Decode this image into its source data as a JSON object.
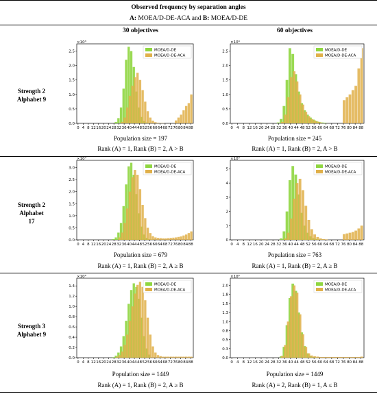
{
  "figure": {
    "title": "Observed frequency by separation angles",
    "subtitle_parts": [
      "A:",
      " MOEA/D-DE-ACA and ",
      "B:",
      " MOEA/D-DE"
    ],
    "col_headers": [
      "30 objectives",
      "60 objectives"
    ],
    "row_labels": [
      [
        "Strength 2",
        "Alphabet 9"
      ],
      [
        "Strength 2",
        "Alphabet",
        "17"
      ],
      [
        "Strength 3",
        "Alphabet 9"
      ]
    ]
  },
  "colors": {
    "moead_de": "#8fd640",
    "moead_de_aca": "#e0b04a",
    "frame": "#000000"
  },
  "chart_data": [
    {
      "type": "bar",
      "row": 0,
      "col": 0,
      "scale_label": "×10³",
      "ylim": [
        0,
        2.75
      ],
      "yticks": [
        0.0,
        0.5,
        1.0,
        1.5,
        2.0,
        2.5
      ],
      "legend": "top-right",
      "xticks": [
        0,
        4,
        8,
        12,
        16,
        20,
        24,
        28,
        32,
        36,
        40,
        44,
        48,
        52,
        56,
        60,
        64,
        68,
        72,
        76,
        80,
        84,
        88
      ],
      "series": [
        {
          "name": "MOEA/D-DE",
          "x": [
            30,
            32,
            34,
            36,
            38,
            40,
            42,
            44,
            46,
            48,
            50,
            52,
            54,
            56
          ],
          "values": [
            0.05,
            0.18,
            0.55,
            1.2,
            2.2,
            2.65,
            2.5,
            1.95,
            1.1,
            0.55,
            0.22,
            0.08,
            0.03,
            0.01
          ]
        },
        {
          "name": "MOEA/D-DE-ACA",
          "x": [
            34,
            36,
            38,
            40,
            42,
            44,
            46,
            48,
            50,
            52,
            54,
            56,
            58,
            60,
            62,
            64,
            66,
            76,
            78,
            80,
            82,
            84,
            86,
            88
          ],
          "values": [
            0.05,
            0.2,
            0.55,
            0.95,
            1.3,
            1.6,
            1.75,
            1.5,
            1.15,
            0.75,
            0.42,
            0.2,
            0.09,
            0.04,
            0.02,
            0.01,
            0.01,
            0.1,
            0.2,
            0.3,
            0.45,
            0.6,
            0.7,
            1.0
          ]
        }
      ],
      "caption_pop": "Population size = 197",
      "caption_rank": "Rank (A) = 1, Rank (B) = 2, A > B"
    },
    {
      "type": "bar",
      "row": 0,
      "col": 1,
      "scale_label": "×10³",
      "ylim": [
        0,
        2.75
      ],
      "yticks": [
        0.0,
        0.5,
        1.0,
        1.5,
        2.0,
        2.5
      ],
      "legend": "top-right",
      "xticks": [
        0,
        4,
        8,
        12,
        16,
        20,
        24,
        28,
        32,
        36,
        40,
        44,
        48,
        52,
        56,
        60,
        64,
        68,
        72,
        76,
        80,
        84,
        88
      ],
      "series": [
        {
          "name": "MOEA/D-DE",
          "x": [
            32,
            34,
            36,
            38,
            40,
            42,
            44,
            46,
            48,
            50,
            52,
            54,
            56,
            58,
            60,
            62,
            64
          ],
          "values": [
            0.03,
            0.15,
            0.6,
            1.5,
            2.6,
            2.4,
            1.7,
            1.1,
            0.7,
            0.45,
            0.3,
            0.2,
            0.13,
            0.08,
            0.05,
            0.03,
            0.02
          ]
        },
        {
          "name": "MOEA/D-DE-ACA",
          "x": [
            34,
            36,
            38,
            40,
            42,
            44,
            46,
            48,
            50,
            52,
            54,
            56,
            58,
            60,
            76,
            78,
            80,
            82,
            84,
            86,
            88
          ],
          "values": [
            0.05,
            0.3,
            0.9,
            1.6,
            1.8,
            1.45,
            1.0,
            0.65,
            0.4,
            0.25,
            0.15,
            0.1,
            0.06,
            0.03,
            0.8,
            0.9,
            1.0,
            1.15,
            1.3,
            1.9,
            2.6
          ]
        }
      ],
      "caption_pop": "Population size = 245",
      "caption_rank": "Rank (A) = 1, Rank (B) = 2, A > B"
    },
    {
      "type": "bar",
      "row": 1,
      "col": 0,
      "scale_label": "×10⁴",
      "ylim": [
        0,
        3.3
      ],
      "yticks": [
        0.0,
        0.5,
        1.0,
        1.5,
        2.0,
        2.5,
        3.0
      ],
      "legend": "top-right",
      "xticks": [
        0,
        4,
        8,
        12,
        16,
        20,
        24,
        28,
        32,
        36,
        40,
        44,
        48,
        52,
        56,
        60,
        64,
        68,
        72,
        76,
        80,
        84,
        88
      ],
      "series": [
        {
          "name": "MOEA/D-DE",
          "x": [
            28,
            30,
            32,
            34,
            36,
            38,
            40,
            42,
            44,
            46,
            48,
            50,
            52,
            54,
            56,
            58
          ],
          "values": [
            0.03,
            0.1,
            0.3,
            0.7,
            1.4,
            2.3,
            3.05,
            3.2,
            2.7,
            1.9,
            1.1,
            0.55,
            0.22,
            0.08,
            0.03,
            0.01
          ]
        },
        {
          "name": "MOEA/D-DE-ACA",
          "x": [
            32,
            34,
            36,
            38,
            40,
            42,
            44,
            46,
            48,
            50,
            52,
            54,
            56,
            58,
            60,
            62,
            64,
            66,
            68,
            70,
            72,
            74,
            76,
            78,
            80,
            82,
            84,
            86,
            88
          ],
          "values": [
            0.1,
            0.3,
            0.7,
            1.3,
            2.0,
            2.6,
            2.9,
            2.7,
            2.1,
            1.45,
            0.9,
            0.5,
            0.28,
            0.15,
            0.1,
            0.08,
            0.07,
            0.06,
            0.06,
            0.07,
            0.08,
            0.09,
            0.1,
            0.12,
            0.14,
            0.18,
            0.22,
            0.28,
            0.35
          ]
        }
      ],
      "caption_pop": "Population size = 679",
      "caption_rank": "Rank (A) = 1, Rank (B) = 2, A ≥ B"
    },
    {
      "type": "bar",
      "row": 1,
      "col": 1,
      "scale_label": "×10⁴",
      "ylim": [
        0,
        5.6
      ],
      "yticks": [
        0,
        1,
        2,
        3,
        4,
        5
      ],
      "legend": "top-right",
      "xticks": [
        0,
        4,
        8,
        12,
        16,
        20,
        24,
        28,
        32,
        36,
        40,
        44,
        48,
        52,
        56,
        60,
        64,
        68,
        72,
        76,
        80,
        84,
        88
      ],
      "series": [
        {
          "name": "MOEA/D-DE",
          "x": [
            34,
            36,
            38,
            40,
            42,
            44,
            46,
            48,
            50,
            52,
            54,
            56,
            58,
            60,
            62
          ],
          "values": [
            0.1,
            0.6,
            2.0,
            4.2,
            5.2,
            4.6,
            3.2,
            1.9,
            1.0,
            0.5,
            0.25,
            0.12,
            0.06,
            0.03,
            0.01
          ]
        },
        {
          "name": "MOEA/D-DE-ACA",
          "x": [
            36,
            38,
            40,
            42,
            44,
            46,
            48,
            50,
            52,
            54,
            56,
            58,
            60,
            62,
            64,
            76,
            78,
            80,
            82,
            84,
            86,
            88
          ],
          "values": [
            0.1,
            0.5,
            1.5,
            2.9,
            4.0,
            4.3,
            3.5,
            2.4,
            1.4,
            0.75,
            0.38,
            0.2,
            0.1,
            0.05,
            0.03,
            0.4,
            0.45,
            0.5,
            0.55,
            0.65,
            0.8,
            1.0
          ]
        }
      ],
      "caption_pop": "Population size = 763",
      "caption_rank": "Rank (A) = 1, Rank (B) = 2, A ≥ B"
    },
    {
      "type": "bar",
      "row": 2,
      "col": 0,
      "scale_label": "×10⁵",
      "ylim": [
        0,
        1.55
      ],
      "yticks": [
        0.0,
        0.2,
        0.4,
        0.6,
        0.8,
        1.0,
        1.2,
        1.4
      ],
      "legend": "top-right",
      "xticks": [
        0,
        4,
        8,
        12,
        16,
        20,
        24,
        28,
        32,
        36,
        40,
        44,
        48,
        52,
        56,
        60,
        64,
        68,
        72,
        76,
        80,
        84,
        88
      ],
      "series": [
        {
          "name": "MOEA/D-DE",
          "x": [
            28,
            30,
            32,
            34,
            36,
            38,
            40,
            42,
            44,
            46,
            48,
            50,
            52,
            54,
            56
          ],
          "values": [
            0.01,
            0.04,
            0.1,
            0.22,
            0.42,
            0.72,
            1.05,
            1.32,
            1.45,
            1.38,
            1.15,
            0.78,
            0.42,
            0.18,
            0.06
          ]
        },
        {
          "name": "MOEA/D-DE-ACA",
          "x": [
            30,
            32,
            34,
            36,
            38,
            40,
            42,
            44,
            46,
            48,
            50,
            52,
            54,
            56,
            58,
            60,
            62,
            64,
            66,
            68,
            70,
            72,
            74,
            76,
            78,
            80,
            82,
            84,
            86,
            88
          ],
          "values": [
            0.02,
            0.05,
            0.12,
            0.25,
            0.45,
            0.72,
            1.0,
            1.25,
            1.42,
            1.48,
            1.38,
            1.12,
            0.78,
            0.45,
            0.22,
            0.1,
            0.05,
            0.03,
            0.02,
            0.02,
            0.02,
            0.02,
            0.02,
            0.02,
            0.02,
            0.02,
            0.02,
            0.02,
            0.02,
            0.02
          ]
        }
      ],
      "caption_pop": "Population size = 1449",
      "caption_rank": "Rank (A) = 1, Rank (B) = 2, A ≥ B"
    },
    {
      "type": "bar",
      "row": 2,
      "col": 1,
      "scale_label": "×10⁵",
      "ylim": [
        0,
        2.2
      ],
      "yticks": [
        0.0,
        0.25,
        0.5,
        0.75,
        1.0,
        1.25,
        1.5,
        1.75,
        2.0
      ],
      "legend": "top-right",
      "xticks": [
        0,
        4,
        8,
        12,
        16,
        20,
        24,
        28,
        32,
        36,
        40,
        44,
        48,
        52,
        56,
        60,
        64,
        68,
        72,
        76,
        80,
        84,
        88
      ],
      "series": [
        {
          "name": "MOEA/D-DE",
          "x": [
            34,
            36,
            38,
            40,
            42,
            44,
            46,
            48,
            50,
            52,
            54,
            56,
            58
          ],
          "values": [
            0.04,
            0.3,
            0.9,
            1.65,
            2.05,
            1.85,
            1.25,
            0.7,
            0.32,
            0.12,
            0.05,
            0.02,
            0.01
          ]
        },
        {
          "name": "MOEA/D-DE-ACA",
          "x": [
            34,
            36,
            38,
            40,
            42,
            44,
            46,
            48,
            50,
            52,
            54,
            56,
            58,
            60,
            62,
            64,
            66,
            68,
            70,
            72,
            74,
            76,
            78,
            80,
            82,
            84,
            86,
            88
          ],
          "values": [
            0.05,
            0.35,
            1.0,
            1.7,
            2.0,
            1.8,
            1.2,
            0.65,
            0.3,
            0.12,
            0.06,
            0.04,
            0.03,
            0.02,
            0.02,
            0.02,
            0.02,
            0.02,
            0.02,
            0.02,
            0.02,
            0.02,
            0.02,
            0.02,
            0.02,
            0.02,
            0.02,
            0.03
          ]
        }
      ],
      "caption_pop": "Population size = 1449",
      "caption_rank": "Rank (A) = 2, Rank (B) = 1, A ≤ B"
    }
  ]
}
